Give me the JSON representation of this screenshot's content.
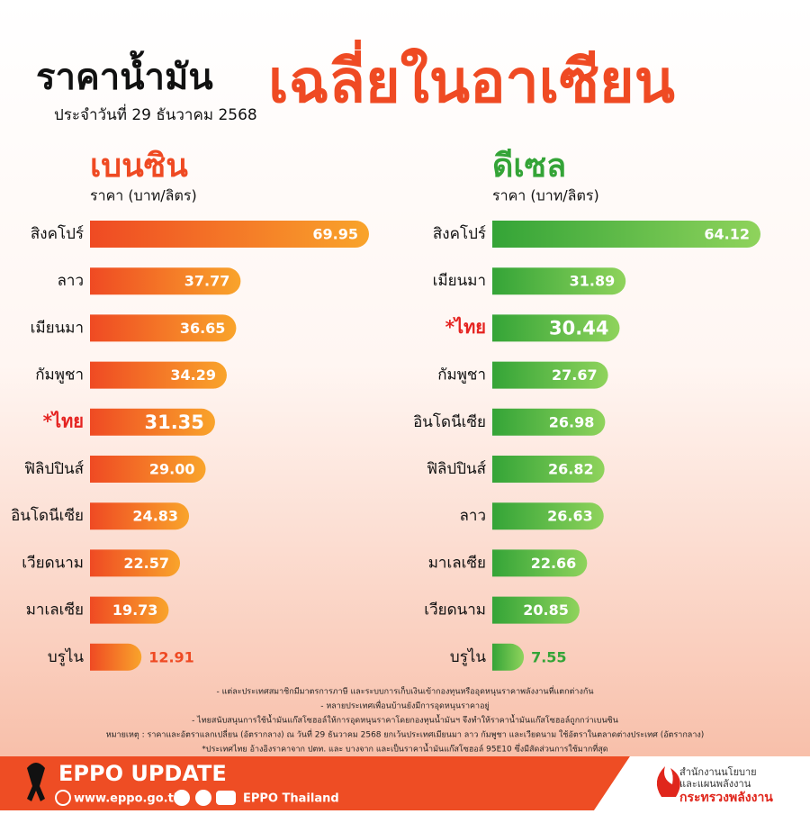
{
  "header": {
    "title": "ราคาน้ำมัน",
    "title_highlight": "เฉลี่ยในอาเซียน",
    "date": "ประจำวันที่  29 ธันวาคม 2568"
  },
  "chart_data": [
    {
      "type": "bar",
      "orientation": "horizontal",
      "title": "เบนซิน",
      "subtitle": "ราคา (บาท/ลิตร)",
      "categories": [
        "สิงคโปร์",
        "ลาว",
        "เมียนมา",
        "กัมพูชา",
        "*ไทย",
        "ฟิลิปปินส์",
        "อินโดนีเซีย",
        "เวียดนาม",
        "มาเลเซีย",
        "บรูไน"
      ],
      "values": [
        69.95,
        37.77,
        36.65,
        34.29,
        31.35,
        29,
        24.83,
        22.57,
        19.73,
        12.91
      ],
      "value_labels": [
        "69.95",
        "37.77",
        "36.65",
        "34.29",
        "31.35",
        "29.00",
        "24.83",
        "22.57",
        "19.73",
        "12.91"
      ],
      "color": "#ef4a23",
      "color_end": "#f9a42b"
    },
    {
      "type": "bar",
      "orientation": "horizontal",
      "title": "ดีเซล",
      "subtitle": "ราคา (บาท/ลิตร)",
      "categories": [
        "สิงคโปร์",
        "เมียนมา",
        "*ไทย",
        "กัมพูชา",
        "อินโดนีเซีย",
        "ฟิลิปปินส์",
        "ลาว",
        "มาเลเซีย",
        "เวียดนาม",
        "บรูไน"
      ],
      "values": [
        64.12,
        31.89,
        30.44,
        27.67,
        26.98,
        26.82,
        26.63,
        22.66,
        20.85,
        7.55
      ],
      "color": "#34a437",
      "color_end": "#8fd35c"
    }
  ],
  "notes": [
    "- แต่ละประเทศสมาชิกมีมาตรการภาษี และระบบการเก็บเงินเข้ากองทุนหรืออุดหนุนราคาพลังงานที่แตกต่างกัน",
    "- หลายประเทศเพื่อนบ้านยังมีการอุดหนุนราคาอยู่",
    "- ไทยสนับสนุนการใช้น้ำมันแก๊สโซฮอล์ให้การอุดหนุนราคาโดยกองทุนน้ำมันฯ จึงทำให้ราคาน้ำมันแก๊สโซฮอล์ถูกกว่าเบนซิน",
    "หมายเหตุ : ราคาและอัตราแลกเปลี่ยน (อัตรากลาง) ณ วันที่ 29 ธันวาคม 2568 ยกเว้นประเทศเมียนมา ลาว กัมพูชา และเวียดนาม ใช้อัตราในตลาดต่างประเทศ (อัตรากลาง)",
    "*ประเทศไทย อ้างอิงราคาจาก ปตท. และ บางจาก และเป็นราคาน้ำมันแก๊สโซฮอล์ 95E10 ซึ่งมีสัดส่วนการใช้มากที่สุด"
  ],
  "footer": {
    "brand": "EPPO UPDATE",
    "website": "www.eppo.go.th",
    "social": "EPPO Thailand",
    "org_line1": "สำนักงานนโยบาย",
    "org_line2": "และแผนพลังงาน",
    "ministry": "กระทรวงพลังงาน"
  }
}
